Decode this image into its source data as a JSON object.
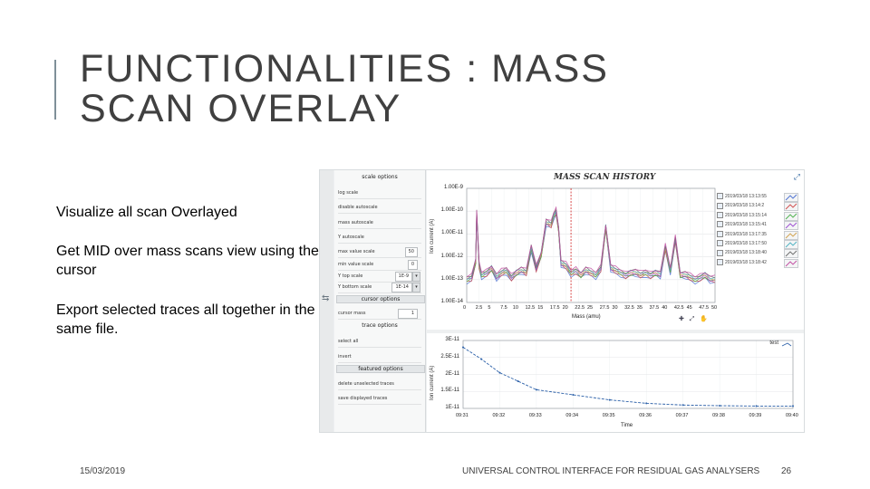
{
  "slide": {
    "title_line1": "FUNCTIONALITIES : MASS",
    "title_line2": "SCAN OVERLAY",
    "bullets": [
      "Visualize all scan Overlayed",
      "Get MID over mass scans view using the cursor",
      "Export selected traces all together in the same file."
    ],
    "footer_date": "15/03/2019",
    "footer_text": "UNIVERSAL CONTROL INTERFACE FOR RESIDUAL GAS ANALYSERS",
    "page_number": "26"
  },
  "panel": {
    "scale_header": "scale options",
    "scale_rows": [
      "log scale",
      "disable autoscale",
      "mass autoscale",
      "Y autoscale",
      "max value scale",
      "min value scale",
      "Y top scale",
      "Y bottom scale"
    ],
    "max_value_scale": "50",
    "min_value_scale": "0",
    "y_top_scale": "1E-9",
    "y_bottom_scale": "1E-14",
    "cursor_header": "cursor options",
    "cursor_mass_label": "cursor mass",
    "cursor_mass": "1",
    "trace_header": "trace options",
    "trace_rows": [
      "select all",
      "invert"
    ],
    "featured_header": "featured options",
    "featured_rows": [
      "delete unselected traces",
      "save displayed traces"
    ]
  },
  "mass_chart": {
    "title": "MASS SCAN HISTORY",
    "ylabel": "Ion current (A)",
    "xlabel": "Mass (amu)",
    "legend": [
      "2019/03/18 13:13:55",
      "2019/03/18 13:14:2",
      "2019/03/18 13:15:14",
      "2019/03/18 13:15:41",
      "2019/03/18 13:17:35",
      "2019/03/18 13:17:50",
      "2019/03/18 13:18:40",
      "2019/03/18 13:18:42"
    ],
    "legend_colors": [
      "#4a6fd0",
      "#d04a4a",
      "#4ab04a",
      "#9a4ad0",
      "#d0a04a",
      "#4ab0c0",
      "#6a6a6a",
      "#c04aa0"
    ],
    "tools": "✚ ⤢ ✋"
  },
  "time_chart": {
    "ylabel": "Ion current (A)",
    "xlabel": "Time",
    "legend": "test"
  },
  "chart_data": [
    {
      "type": "line",
      "title": "MASS SCAN HISTORY",
      "xlabel": "Mass (amu)",
      "ylabel": "Ion current (A)",
      "xlim": [
        0,
        50
      ],
      "ylim": [
        "1.00E-14",
        "1.00E-9"
      ],
      "yscale": "log",
      "y_ticks": [
        "1.00E-9",
        "1.00E-10",
        "1.00E-11",
        "1.00E-12",
        "1.00E-13",
        "1.00E-14"
      ],
      "x_ticks": [
        "0",
        "2.5",
        "5",
        "7.5",
        "10",
        "12.5",
        "15",
        "17.5",
        "20",
        "22.5",
        "25",
        "27.5",
        "30",
        "32.5",
        "35",
        "37.5",
        "40",
        "42.5",
        "45",
        "47.5",
        "50"
      ],
      "cursor_x": 21,
      "grid": true,
      "legend_position": "right",
      "series_count": 8,
      "profile": {
        "x": [
          0,
          1,
          1.8,
          2,
          2.5,
          3,
          4,
          5,
          6,
          7,
          8,
          9,
          10,
          11,
          12,
          13,
          14,
          15,
          16,
          17,
          17.5,
          18,
          18.5,
          19,
          20,
          21,
          22,
          23,
          24,
          25,
          26,
          27,
          28,
          29,
          30,
          31,
          32,
          33,
          34,
          35,
          36,
          37,
          38,
          39,
          40,
          41,
          42,
          43,
          44,
          45,
          46,
          47,
          48,
          49,
          50
        ],
        "y_log10": [
          -13.0,
          -12.9,
          -12.2,
          -10.1,
          -12.4,
          -12.8,
          -12.7,
          -12.5,
          -12.9,
          -12.7,
          -12.6,
          -12.9,
          -12.7,
          -12.6,
          -12.7,
          -11.6,
          -12.5,
          -11.9,
          -10.5,
          -10.6,
          -10.2,
          -10.0,
          -10.8,
          -12.3,
          -12.4,
          -12.7,
          -12.6,
          -12.8,
          -12.6,
          -12.7,
          -12.8,
          -12.5,
          -10.7,
          -12.5,
          -12.6,
          -12.7,
          -12.8,
          -12.7,
          -12.7,
          -12.8,
          -12.7,
          -12.8,
          -12.7,
          -12.8,
          -11.6,
          -12.6,
          -11.2,
          -12.8,
          -12.8,
          -12.9,
          -13.0,
          -12.9,
          -12.8,
          -13.0,
          -13.0
        ]
      }
    },
    {
      "type": "line",
      "xlabel": "Time",
      "ylabel": "Ion current (A)",
      "y_ticks": [
        "3E-11",
        "2.5E-11",
        "2E-11",
        "1.5E-11",
        "1E-11"
      ],
      "ylim": [
        1e-11,
        3e-11
      ],
      "series": [
        {
          "name": "test",
          "x": [
            "09:31",
            "09:31:30",
            "09:32",
            "09:32:30",
            "09:33",
            "09:34",
            "09:35",
            "09:36",
            "09:37",
            "09:38",
            "09:39",
            "09:40"
          ],
          "values": [
            2.8e-11,
            2.45e-11,
            2.05e-11,
            1.8e-11,
            1.55e-11,
            1.4e-11,
            1.25e-11,
            1.15e-11,
            1.1e-11,
            1.08e-11,
            1.07e-11,
            1.07e-11
          ]
        }
      ],
      "x_ticks": [
        "09:31",
        "09:32",
        "09:33",
        "09:34",
        "09:35",
        "09:36",
        "09:37",
        "09:38",
        "09:39",
        "09:40"
      ],
      "grid": true,
      "legend_position": "top-right"
    }
  ]
}
